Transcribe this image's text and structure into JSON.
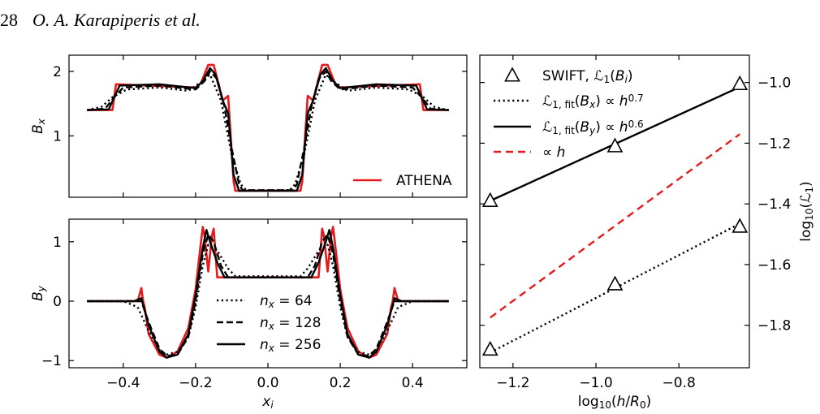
{
  "header": {
    "page_number": "28",
    "running_head": "O. A. Karapiperis et al."
  },
  "chart_data": [
    {
      "id": "bx",
      "type": "line",
      "ylabel_base": "B",
      "ylabel_sub": "x",
      "xlim": [
        -0.55,
        0.55
      ],
      "ylim": [
        0.05,
        2.25
      ],
      "xticks": [
        -0.4,
        -0.2,
        0.0,
        0.2,
        0.4
      ],
      "yticks": [
        1,
        2
      ],
      "ytick_labels": [
        "1",
        "2"
      ],
      "legend": {
        "placement": "lower-right",
        "entries": [
          {
            "label": "ATHENA",
            "series": "athena"
          }
        ]
      },
      "series": [
        {
          "name": "athena",
          "style": "red-solid",
          "x": [
            -0.5,
            -0.43,
            -0.42,
            -0.2,
            -0.185,
            -0.165,
            -0.15,
            -0.125,
            -0.11,
            -0.095,
            -0.09,
            0.09,
            0.095,
            0.11,
            0.125,
            0.15,
            0.165,
            0.185,
            0.2,
            0.42,
            0.43,
            0.5
          ],
          "y": [
            1.4,
            1.4,
            1.8,
            1.75,
            1.82,
            2.1,
            2.1,
            1.55,
            1.62,
            0.3,
            0.15,
            0.15,
            0.3,
            1.62,
            1.55,
            2.1,
            2.1,
            1.82,
            1.75,
            1.8,
            1.4,
            1.4
          ]
        },
        {
          "name": "nx256",
          "style": "black-solid",
          "x": [
            -0.5,
            -0.44,
            -0.425,
            -0.41,
            -0.3,
            -0.2,
            -0.18,
            -0.16,
            -0.145,
            -0.125,
            -0.11,
            -0.095,
            -0.08,
            0.08,
            0.095,
            0.11,
            0.125,
            0.145,
            0.16,
            0.18,
            0.2,
            0.3,
            0.41,
            0.425,
            0.44,
            0.5
          ],
          "y": [
            1.4,
            1.41,
            1.6,
            1.78,
            1.8,
            1.74,
            1.85,
            2.05,
            1.95,
            1.55,
            1.35,
            0.4,
            0.15,
            0.15,
            0.4,
            1.35,
            1.55,
            1.95,
            2.05,
            1.85,
            1.74,
            1.8,
            1.78,
            1.6,
            1.41,
            1.4
          ]
        },
        {
          "name": "nx128",
          "style": "black-dashed",
          "x": [
            -0.5,
            -0.45,
            -0.425,
            -0.4,
            -0.3,
            -0.2,
            -0.175,
            -0.16,
            -0.14,
            -0.12,
            -0.1,
            -0.08,
            -0.07,
            0.07,
            0.08,
            0.1,
            0.12,
            0.14,
            0.16,
            0.175,
            0.2,
            0.3,
            0.4,
            0.425,
            0.45,
            0.5
          ],
          "y": [
            1.4,
            1.42,
            1.6,
            1.75,
            1.78,
            1.72,
            1.85,
            2.0,
            1.88,
            1.45,
            0.8,
            0.25,
            0.16,
            0.16,
            0.25,
            0.8,
            1.45,
            1.88,
            2.0,
            1.85,
            1.72,
            1.78,
            1.75,
            1.6,
            1.42,
            1.4
          ]
        },
        {
          "name": "nx64",
          "style": "black-dotted",
          "x": [
            -0.5,
            -0.46,
            -0.43,
            -0.39,
            -0.3,
            -0.22,
            -0.18,
            -0.16,
            -0.13,
            -0.1,
            -0.075,
            -0.06,
            0.06,
            0.075,
            0.1,
            0.13,
            0.16,
            0.18,
            0.22,
            0.3,
            0.39,
            0.43,
            0.46,
            0.5
          ],
          "y": [
            1.4,
            1.45,
            1.6,
            1.72,
            1.75,
            1.7,
            1.85,
            1.95,
            1.55,
            0.7,
            0.25,
            0.16,
            0.16,
            0.25,
            0.7,
            1.55,
            1.95,
            1.85,
            1.7,
            1.75,
            1.72,
            1.6,
            1.45,
            1.4
          ]
        }
      ]
    },
    {
      "id": "by",
      "type": "line",
      "xlabel_base": "x",
      "xlabel_sub": "i",
      "ylabel_base": "B",
      "ylabel_sub": "y",
      "xlim": [
        -0.55,
        0.55
      ],
      "ylim": [
        -1.12,
        1.38
      ],
      "xticks": [
        -0.4,
        -0.2,
        0.0,
        0.2,
        0.4
      ],
      "xtick_labels": [
        "−0.4",
        "−0.2",
        "0.0",
        "0.2",
        "0.4"
      ],
      "yticks": [
        -1,
        0,
        1
      ],
      "ytick_labels": [
        "−1",
        "0",
        "1"
      ],
      "legend": {
        "placement": "lower-center",
        "entries": [
          {
            "base": "n",
            "sub": "x",
            "value": " = 64",
            "series": "nx64"
          },
          {
            "base": "n",
            "sub": "x",
            "value": " = 128",
            "series": "nx128"
          },
          {
            "base": "n",
            "sub": "x",
            "value": " = 256",
            "series": "nx256"
          }
        ]
      },
      "series": [
        {
          "name": "athena",
          "style": "red-solid",
          "x": [
            -0.5,
            -0.36,
            -0.35,
            -0.345,
            -0.34,
            -0.33,
            -0.3,
            -0.28,
            -0.25,
            -0.22,
            -0.2,
            -0.185,
            -0.18,
            -0.175,
            -0.165,
            -0.155,
            -0.15,
            -0.14,
            0.14,
            0.15,
            0.155,
            0.165,
            0.175,
            0.18,
            0.185,
            0.2,
            0.22,
            0.25,
            0.28,
            0.3,
            0.33,
            0.34,
            0.345,
            0.35,
            0.36,
            0.5
          ],
          "y": [
            0,
            0,
            0.22,
            0.0,
            -0.12,
            -0.55,
            -0.9,
            -0.95,
            -0.85,
            -0.45,
            0.2,
            1.0,
            1.25,
            1.1,
            0.5,
            1.1,
            1.22,
            0.4,
            0.4,
            1.22,
            1.1,
            0.5,
            1.1,
            1.25,
            1.0,
            0.2,
            -0.45,
            -0.85,
            -0.95,
            -0.9,
            -0.55,
            -0.12,
            0.0,
            0.22,
            0,
            0
          ]
        },
        {
          "name": "nx256",
          "style": "black-solid",
          "x": [
            -0.5,
            -0.37,
            -0.35,
            -0.33,
            -0.3,
            -0.28,
            -0.25,
            -0.22,
            -0.2,
            -0.18,
            -0.17,
            -0.16,
            -0.14,
            -0.12,
            0.12,
            0.14,
            0.16,
            0.17,
            0.18,
            0.2,
            0.22,
            0.25,
            0.28,
            0.3,
            0.33,
            0.35,
            0.37,
            0.5
          ],
          "y": [
            0,
            0,
            0.05,
            -0.4,
            -0.85,
            -0.95,
            -0.9,
            -0.55,
            0.1,
            0.9,
            1.2,
            1.0,
            0.65,
            0.4,
            0.4,
            0.65,
            1.0,
            1.2,
            0.9,
            0.1,
            -0.55,
            -0.9,
            -0.95,
            -0.85,
            -0.4,
            0.05,
            0,
            0
          ]
        },
        {
          "name": "nx128",
          "style": "black-dashed",
          "x": [
            -0.5,
            -0.38,
            -0.35,
            -0.33,
            -0.3,
            -0.28,
            -0.25,
            -0.22,
            -0.2,
            -0.18,
            -0.165,
            -0.15,
            -0.13,
            -0.11,
            0.11,
            0.13,
            0.15,
            0.165,
            0.18,
            0.2,
            0.22,
            0.25,
            0.28,
            0.3,
            0.33,
            0.35,
            0.38,
            0.5
          ],
          "y": [
            0,
            0,
            0.0,
            -0.35,
            -0.8,
            -0.92,
            -0.9,
            -0.6,
            0.0,
            0.8,
            1.12,
            1.0,
            0.6,
            0.4,
            0.4,
            0.6,
            1.0,
            1.12,
            0.8,
            0.0,
            -0.6,
            -0.9,
            -0.92,
            -0.8,
            -0.35,
            0.0,
            0,
            0
          ]
        },
        {
          "name": "nx64",
          "style": "black-dotted",
          "x": [
            -0.5,
            -0.4,
            -0.36,
            -0.33,
            -0.3,
            -0.28,
            -0.25,
            -0.22,
            -0.2,
            -0.18,
            -0.165,
            -0.14,
            -0.11,
            -0.09,
            0.09,
            0.11,
            0.14,
            0.165,
            0.18,
            0.2,
            0.22,
            0.25,
            0.28,
            0.3,
            0.33,
            0.36,
            0.4,
            0.5
          ],
          "y": [
            0,
            0,
            -0.1,
            -0.5,
            -0.82,
            -0.9,
            -0.85,
            -0.6,
            -0.1,
            0.6,
            0.95,
            0.85,
            0.55,
            0.42,
            0.42,
            0.55,
            0.85,
            0.95,
            0.6,
            -0.1,
            -0.6,
            -0.85,
            -0.9,
            -0.82,
            -0.5,
            -0.1,
            0,
            0
          ]
        }
      ]
    },
    {
      "id": "conv",
      "type": "line",
      "xlabel_html": "log10(h/R0)",
      "xlabel_main": "log",
      "xlabel_sub": "10",
      "xlabel_rest": "(h/R",
      "xlabel_sub2": "0",
      "xlabel_close": ")",
      "ylabel_main": "log",
      "ylabel_sub": "10",
      "ylabel_rest": "(ℒ",
      "ylabel_sub2": "1",
      "ylabel_close": ")",
      "xlim": [
        -1.28,
        -0.63
      ],
      "ylim": [
        -1.94,
        -0.91
      ],
      "xticks": [
        -1.2,
        -1.0,
        -0.8
      ],
      "xtick_labels": [
        "−1.2",
        "−1.0",
        "−0.8"
      ],
      "yticks": [
        -1.8,
        -1.6,
        -1.4,
        -1.2,
        -1.0
      ],
      "ytick_labels": [
        "−1.8",
        "−1.6",
        "−1.4",
        "−1.2",
        "−1.0"
      ],
      "legend": {
        "placement": "top-left",
        "entries": [
          {
            "label_main": "SWIFT, ℒ",
            "label_sub": "1",
            "label_rest": "(B",
            "label_sub2": "i",
            "label_close": ")",
            "series": "swift_bx"
          },
          {
            "label_main": "ℒ",
            "label_sub": "1, fit",
            "label_rest": "(B",
            "label_sub2": "x",
            "label_close": ") ∝ h",
            "label_sup": "0.7",
            "series": "fit_bx"
          },
          {
            "label_main": "ℒ",
            "label_sub": "1, fit",
            "label_rest": "(B",
            "label_sub2": "y",
            "label_close": ") ∝ h",
            "label_sup": "0.6",
            "series": "fit_by"
          },
          {
            "label_main": "∝ h",
            "series": "prop_h"
          }
        ]
      },
      "series": [
        {
          "name": "swift_by",
          "style": "triangles",
          "x": [
            -1.255,
            -0.954,
            -0.653
          ],
          "y": [
            -1.39,
            -1.21,
            -1.005
          ]
        },
        {
          "name": "swift_bx",
          "style": "triangles",
          "x": [
            -1.255,
            -0.954,
            -0.653
          ],
          "y": [
            -1.88,
            -1.665,
            -1.475
          ]
        },
        {
          "name": "fit_by",
          "style": "black-solid",
          "x": [
            -1.255,
            -0.653
          ],
          "y": [
            -1.39,
            -1.015
          ]
        },
        {
          "name": "fit_bx",
          "style": "black-dotted",
          "x": [
            -1.255,
            -0.653
          ],
          "y": [
            -1.89,
            -1.465
          ]
        },
        {
          "name": "prop_h",
          "style": "red-dashed",
          "x": [
            -1.255,
            -0.653
          ],
          "y": [
            -1.775,
            -1.17
          ]
        }
      ]
    }
  ]
}
